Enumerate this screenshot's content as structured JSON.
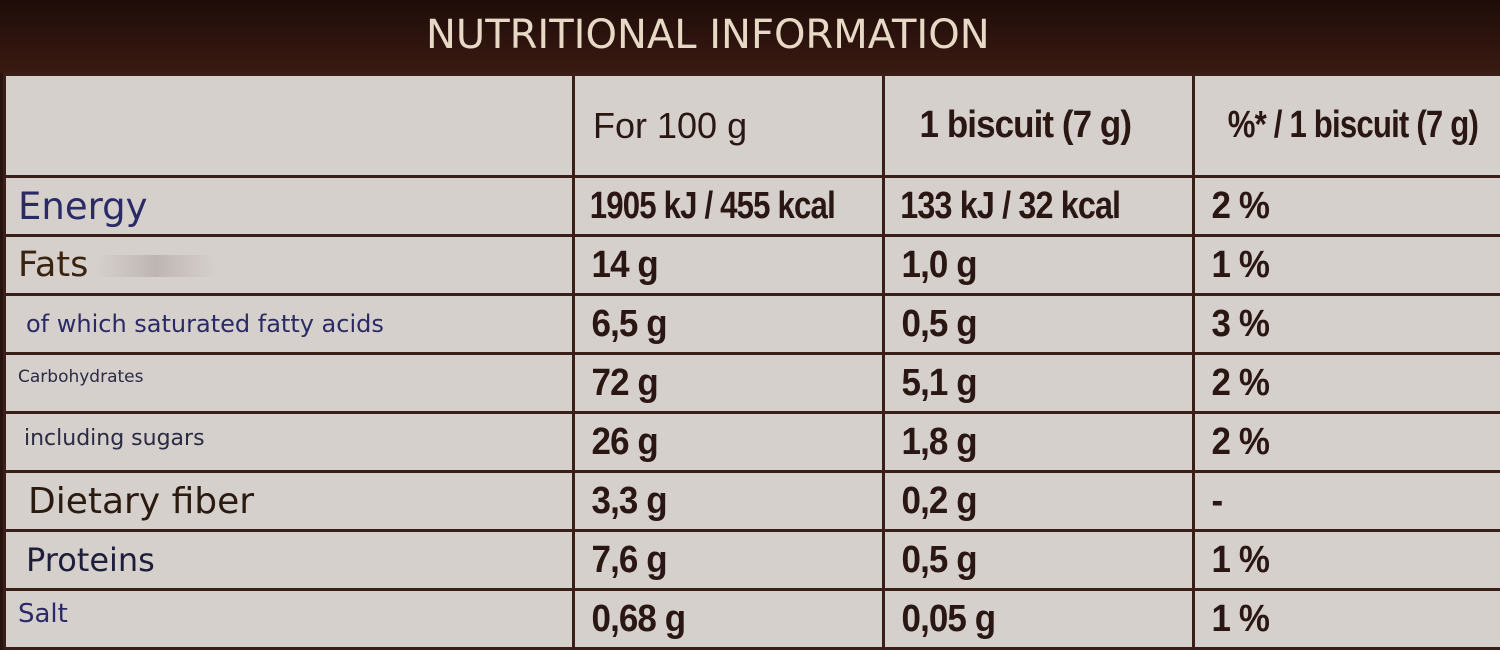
{
  "title": "NUTRITIONAL INFORMATION",
  "columns": [
    "",
    "For 100 g",
    "1 biscuit (7 g)",
    "%* / 1 biscuit (7 g)"
  ],
  "rows": [
    {
      "label": "Energy",
      "per100g": "1905 kJ / 455 kcal",
      "perBiscuit": "133 kJ / 32 kcal",
      "percent": "2 %"
    },
    {
      "label": "Fats",
      "per100g": "14 g",
      "perBiscuit": "1,0 g",
      "percent": "1 %"
    },
    {
      "label": "of which saturated fatty acids",
      "per100g": "6,5 g",
      "perBiscuit": "0,5 g",
      "percent": "3 %"
    },
    {
      "label": "Carbohydrates",
      "per100g": "72 g",
      "perBiscuit": "5,1 g",
      "percent": "2 %"
    },
    {
      "label": "including sugars",
      "per100g": "26 g",
      "perBiscuit": "1,8 g",
      "percent": "2 %"
    },
    {
      "label": "Dietary fiber",
      "per100g": "3,3 g",
      "perBiscuit": "0,2 g",
      "percent": "-"
    },
    {
      "label": "Proteins",
      "per100g": "7,6 g",
      "perBiscuit": "0,5 g",
      "percent": "1 %"
    },
    {
      "label": "Salt",
      "per100g": "0,68 g",
      "perBiscuit": "0,05 g",
      "percent": "1 %"
    }
  ],
  "colors": {
    "header_bg": "#2a1410",
    "table_bg": "#d6d0cc",
    "border": "#3a1e18",
    "label_text": "#2a2a66",
    "value_text": "#2a1612"
  }
}
